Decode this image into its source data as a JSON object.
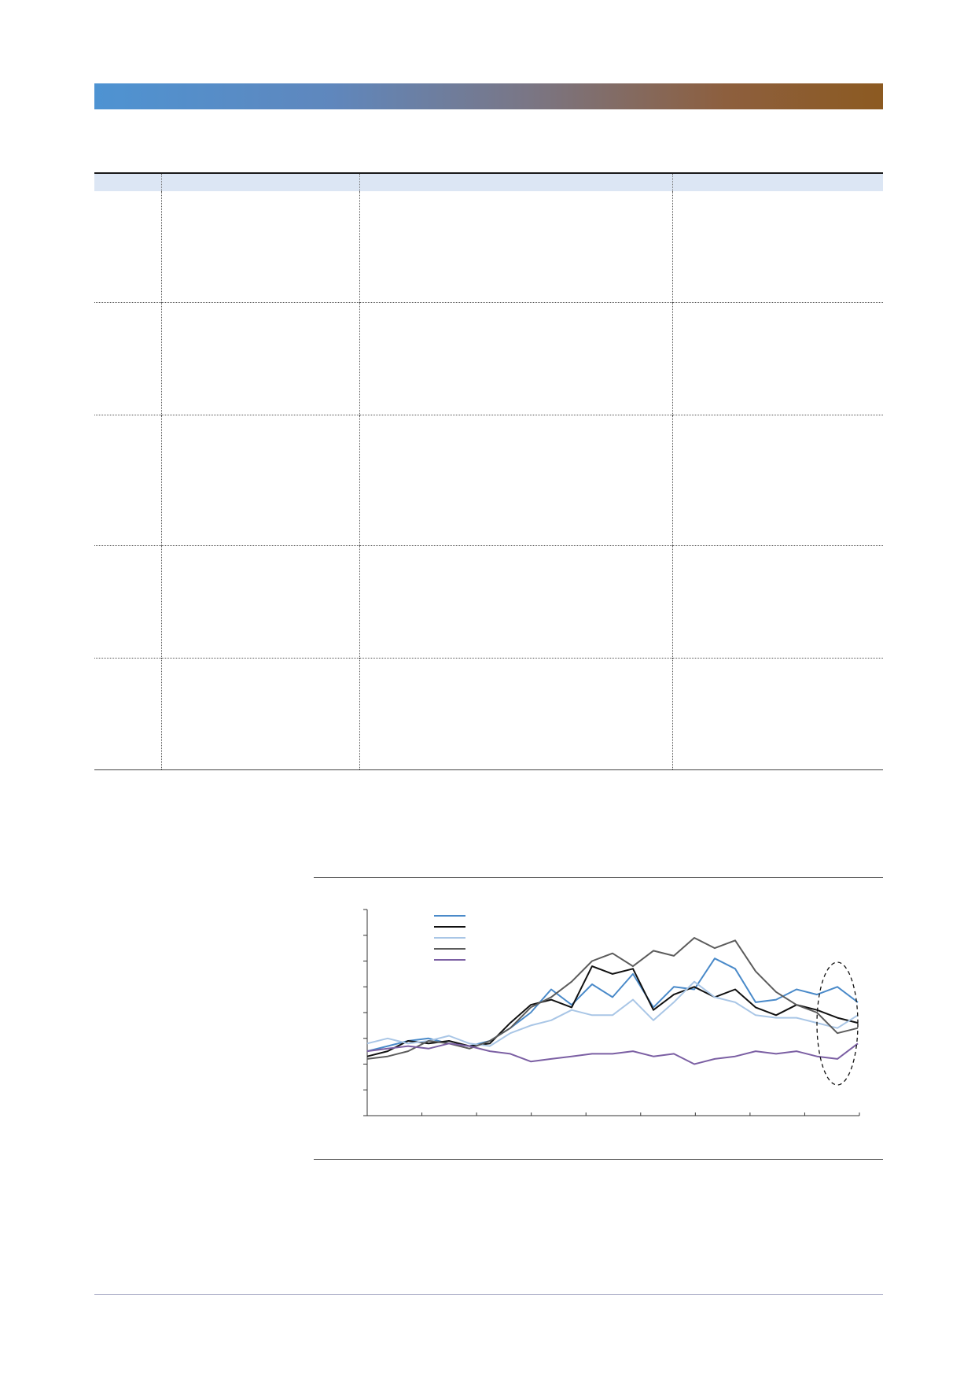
{
  "banner": {
    "gradient_start": "#4e93d2",
    "gradient_end": "#8c5a21"
  },
  "table": {
    "header_fill": "#dce6f4",
    "columns": [
      "",
      "",
      "",
      ""
    ],
    "rows": [
      [
        "",
        "",
        "",
        ""
      ],
      [
        "",
        "",
        "",
        ""
      ],
      [
        "",
        "",
        "",
        ""
      ],
      [
        "",
        "",
        "",
        ""
      ],
      [
        "",
        "",
        "",
        ""
      ]
    ]
  },
  "chart_data": {
    "type": "line",
    "title": "",
    "xlabel": "",
    "ylabel": "",
    "x_ticks": 9,
    "y_ticks": 8,
    "ylim": [
      0,
      8
    ],
    "legend_position": "top-left",
    "grid": false,
    "highlight": "dashed ellipse around the most recent observations",
    "series": [
      {
        "color": "#4a8ac9",
        "values": [
          2.5,
          2.7,
          2.9,
          3.0,
          2.8,
          2.7,
          2.9,
          3.4,
          4.0,
          4.9,
          4.3,
          5.1,
          4.6,
          5.5,
          4.2,
          5.0,
          4.9,
          6.1,
          5.7,
          4.4,
          4.5,
          4.9,
          4.7,
          5.0,
          4.4
        ]
      },
      {
        "color": "#111111",
        "values": [
          2.3,
          2.5,
          2.9,
          2.8,
          2.9,
          2.7,
          2.8,
          3.6,
          4.3,
          4.5,
          4.2,
          5.8,
          5.5,
          5.7,
          4.1,
          4.7,
          5.0,
          4.6,
          4.9,
          4.2,
          3.9,
          4.3,
          4.1,
          3.8,
          3.6
        ]
      },
      {
        "color": "#a9c6e6",
        "values": [
          2.8,
          3.0,
          2.8,
          2.9,
          3.1,
          2.8,
          2.7,
          3.2,
          3.5,
          3.7,
          4.1,
          3.9,
          3.9,
          4.5,
          3.7,
          4.4,
          5.2,
          4.6,
          4.4,
          3.9,
          3.8,
          3.8,
          3.6,
          3.4,
          3.9
        ]
      },
      {
        "color": "#5c5c5c",
        "values": [
          2.2,
          2.3,
          2.5,
          2.9,
          2.8,
          2.6,
          2.9,
          3.4,
          4.2,
          4.6,
          5.2,
          6.0,
          6.3,
          5.8,
          6.4,
          6.2,
          6.9,
          6.5,
          6.8,
          5.6,
          4.8,
          4.3,
          4.0,
          3.2,
          3.4
        ]
      },
      {
        "color": "#7b5fa3",
        "values": [
          2.5,
          2.6,
          2.7,
          2.6,
          2.8,
          2.7,
          2.5,
          2.4,
          2.1,
          2.2,
          2.3,
          2.4,
          2.4,
          2.5,
          2.3,
          2.4,
          2.0,
          2.2,
          2.3,
          2.5,
          2.4,
          2.5,
          2.3,
          2.2,
          2.8
        ]
      }
    ]
  }
}
